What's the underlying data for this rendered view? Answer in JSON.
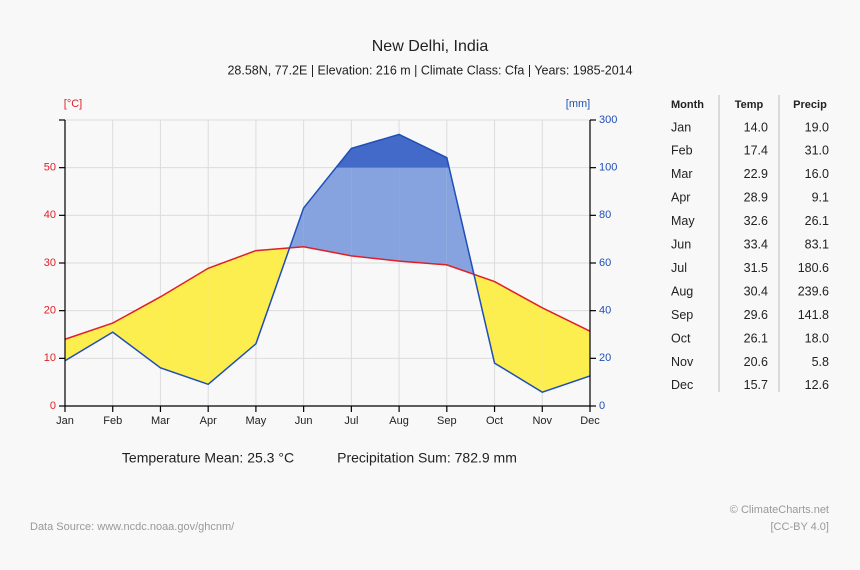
{
  "chart_data": {
    "type": "climate",
    "title": "New Delhi, India",
    "subtitle": "28.58N, 77.2E | Elevation: 216 m | Climate Class: Cfa | Years: 1985-2014",
    "y_label": "[°C]",
    "y2_label": "[mm]",
    "categories": [
      "Jan",
      "Feb",
      "Mar",
      "Apr",
      "May",
      "Jun",
      "Jul",
      "Aug",
      "Sep",
      "Oct",
      "Nov",
      "Dec"
    ],
    "series": [
      {
        "name": "Temp",
        "color": "#e01f26",
        "values": [
          14.0,
          17.4,
          22.9,
          28.9,
          32.6,
          33.4,
          31.5,
          30.4,
          29.6,
          26.1,
          20.6,
          15.7
        ],
        "value_labels": [
          "14.0",
          "17.4",
          "22.9",
          "28.9",
          "32.6",
          "33.4",
          "31.5",
          "30.4",
          "29.6",
          "26.1",
          "20.6",
          "15.7"
        ]
      },
      {
        "name": "Precip",
        "color": "#1f4fb8",
        "axis": "y2",
        "values": [
          19.0,
          31.0,
          16.0,
          9.1,
          26.1,
          83.1,
          180.6,
          239.6,
          141.8,
          18.0,
          5.8,
          12.6
        ],
        "value_labels": [
          "19.0",
          "31.0",
          "16.0",
          "9.1",
          "26.1",
          "83.1",
          "180.6",
          "239.6",
          "141.8",
          "18.0",
          "5.8",
          "12.6"
        ]
      }
    ],
    "ylim": [
      0,
      60
    ],
    "yticks": [
      0,
      10,
      20,
      30,
      40,
      50
    ],
    "y2lim": [
      0,
      300
    ],
    "y2ticks": [
      0,
      20,
      40,
      60,
      80,
      100,
      300
    ],
    "y2scale": "piecewise",
    "grid": true,
    "arid_color": "#fdee4f",
    "humid_color": "#86a3e0",
    "perhumid_color": "#4369c9",
    "table_header": "Month",
    "annotations": [
      "Temperature Mean: 25.3 °C",
      "Precipitation Sum: 782.9 mm"
    ],
    "source": "Data Source: www.ncdc.noaa.gov/ghcnm/",
    "credit": "© ClimateCharts.net",
    "license": "[CC-BY 4.0]"
  }
}
